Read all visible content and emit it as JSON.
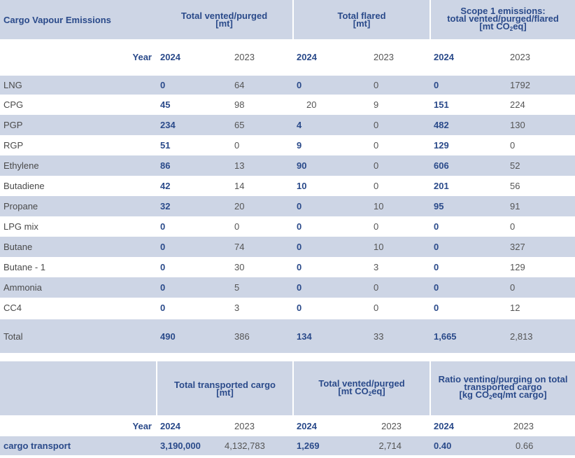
{
  "table1": {
    "title": "Cargo Vapour Emissions",
    "col_vented": [
      "Total vented/purged",
      "[mt]"
    ],
    "col_flared": [
      "Total flared",
      "[mt]"
    ],
    "col_scope": [
      "Scope 1 emissions:",
      "total vented/purged/flared",
      "[mt CO",
      "2",
      "eq]"
    ],
    "year_label": "Year",
    "y2024": "2024",
    "y2023": "2023",
    "rows": [
      {
        "name": "LNG",
        "v24": "0",
        "v23": "64",
        "f24": "0",
        "f23": "0",
        "s24": "0",
        "s23": "1792"
      },
      {
        "name": "CPG",
        "v24": "45",
        "v23": "98",
        "f24": "20",
        "f23": "9",
        "s24": "151",
        "s23": "224"
      },
      {
        "name": "PGP",
        "v24": "234",
        "v23": "65",
        "f24": "4",
        "f23": "0",
        "s24": "482",
        "s23": "130"
      },
      {
        "name": "RGP",
        "v24": "51",
        "v23": "0",
        "f24": "9",
        "f23": "0",
        "s24": "129",
        "s23": "0"
      },
      {
        "name": "Ethylene",
        "v24": "86",
        "v23": "13",
        "f24": "90",
        "f23": "0",
        "s24": "606",
        "s23": "52"
      },
      {
        "name": "Butadiene",
        "v24": "42",
        "v23": "14",
        "f24": "10",
        "f23": "0",
        "s24": "201",
        "s23": "56"
      },
      {
        "name": "Propane",
        "v24": "32",
        "v23": "20",
        "f24": "0",
        "f23": "10",
        "s24": "95",
        "s23": "91"
      },
      {
        "name": "LPG mix",
        "v24": "0",
        "v23": "0",
        "f24": "0",
        "f23": "0",
        "s24": "0",
        "s23": "0"
      },
      {
        "name": "Butane",
        "v24": "0",
        "v23": "74",
        "f24": "0",
        "f23": "10",
        "s24": "0",
        "s23": "327"
      },
      {
        "name": "Butane - 1",
        "v24": "0",
        "v23": "30",
        "f24": "0",
        "f23": "3",
        "s24": "0",
        "s23": "129"
      },
      {
        "name": "Ammonia",
        "v24": "0",
        "v23": "5",
        "f24": "0",
        "f23": "0",
        "s24": "0",
        "s23": "0"
      },
      {
        "name": "CC4",
        "v24": "0",
        "v23": "3",
        "f24": "0",
        "f23": "0",
        "s24": "0",
        "s23": "12"
      }
    ],
    "total": {
      "name": "Total",
      "v24": "490",
      "v23": "386",
      "f24": "134",
      "f23": "33",
      "s24": "1,665",
      "s23": "2,813"
    }
  },
  "table2": {
    "col_cargo": [
      "Total transported cargo",
      "[mt]"
    ],
    "col_vented": [
      "Total vented/purged",
      "[mt CO",
      "2",
      "eq]"
    ],
    "col_ratio": [
      "Ratio venting/purging on total",
      "transported cargo",
      "[kg CO",
      "2",
      "eq/mt cargo]"
    ],
    "year_label": "Year",
    "y2024": "2024",
    "y2023": "2023",
    "row": {
      "name": "cargo transport",
      "c24": "3,190,000",
      "c23": "4,132,783",
      "v24": "1,269",
      "v23": "2,714",
      "r24": "0.40",
      "r23": "0.66"
    }
  }
}
